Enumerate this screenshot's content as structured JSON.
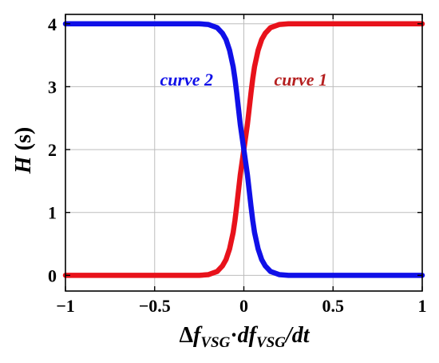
{
  "chart_data": {
    "type": "line",
    "title": "",
    "xlabel": {
      "main": "Δ",
      "parts": [
        {
          "t": "f",
          "style": "italic"
        },
        {
          "t": "VSG",
          "style": "sub"
        },
        {
          "t": "·",
          "style": "plain"
        },
        {
          "t": "df",
          "style": "italic"
        },
        {
          "t": "VSG",
          "style": "sub"
        },
        {
          "t": "/dt",
          "style": "italic"
        }
      ]
    },
    "ylabel": {
      "symbol": "H",
      "unit": " (s)"
    },
    "xlim": [
      -1,
      1
    ],
    "ylim": [
      -0.25,
      4.15
    ],
    "xticks": [
      -1,
      -0.5,
      0,
      0.5,
      1
    ],
    "xtick_labels": [
      "−1",
      "−0.5",
      "0",
      "0.5",
      "1"
    ],
    "yticks": [
      0,
      1,
      2,
      3,
      4
    ],
    "ytick_labels": [
      "0",
      "1",
      "2",
      "3",
      "4"
    ],
    "grid": true,
    "series": [
      {
        "name": "curve 1",
        "color": "#e8121b",
        "x": [
          -1,
          -0.9,
          -0.8,
          -0.7,
          -0.6,
          -0.5,
          -0.4,
          -0.3,
          -0.25,
          -0.2,
          -0.15,
          -0.12,
          -0.1,
          -0.08,
          -0.06,
          -0.05,
          -0.04,
          -0.03,
          -0.02,
          -0.01,
          0,
          0.01,
          0.02,
          0.03,
          0.04,
          0.05,
          0.06,
          0.08,
          0.1,
          0.12,
          0.15,
          0.2,
          0.25,
          0.3,
          0.4,
          0.5,
          0.6,
          0.7,
          0.8,
          0.9,
          1
        ],
        "y": [
          0,
          0,
          0,
          0,
          0,
          0,
          0,
          0,
          0,
          0.01,
          0.06,
          0.15,
          0.25,
          0.42,
          0.68,
          0.87,
          1.1,
          1.35,
          1.6,
          1.8,
          2,
          2.2,
          2.4,
          2.65,
          2.9,
          3.13,
          3.32,
          3.58,
          3.75,
          3.85,
          3.94,
          3.99,
          4,
          4,
          4,
          4,
          4,
          4,
          4,
          4,
          4
        ]
      },
      {
        "name": "curve 2",
        "color": "#1010e8",
        "x": [
          -1,
          -0.9,
          -0.8,
          -0.7,
          -0.6,
          -0.5,
          -0.4,
          -0.3,
          -0.25,
          -0.2,
          -0.15,
          -0.12,
          -0.1,
          -0.08,
          -0.06,
          -0.05,
          -0.04,
          -0.03,
          -0.02,
          -0.01,
          0,
          0.01,
          0.02,
          0.03,
          0.04,
          0.05,
          0.06,
          0.08,
          0.1,
          0.12,
          0.15,
          0.2,
          0.25,
          0.3,
          0.4,
          0.5,
          0.6,
          0.7,
          0.8,
          0.9,
          1
        ],
        "y": [
          4,
          4,
          4,
          4,
          4,
          4,
          4,
          4,
          4,
          3.99,
          3.94,
          3.85,
          3.75,
          3.58,
          3.32,
          3.13,
          2.9,
          2.65,
          2.4,
          2.2,
          2,
          1.8,
          1.6,
          1.35,
          1.1,
          0.87,
          0.68,
          0.42,
          0.25,
          0.15,
          0.06,
          0.01,
          0,
          0,
          0,
          0,
          0,
          0,
          0,
          0,
          0
        ]
      }
    ],
    "annotations": [
      {
        "text": "curve 2",
        "color": "#1010e8",
        "x": -0.47,
        "y": 3.12
      },
      {
        "text": "curve 1",
        "color": "#b52020",
        "x": 0.17,
        "y": 3.12
      }
    ]
  }
}
